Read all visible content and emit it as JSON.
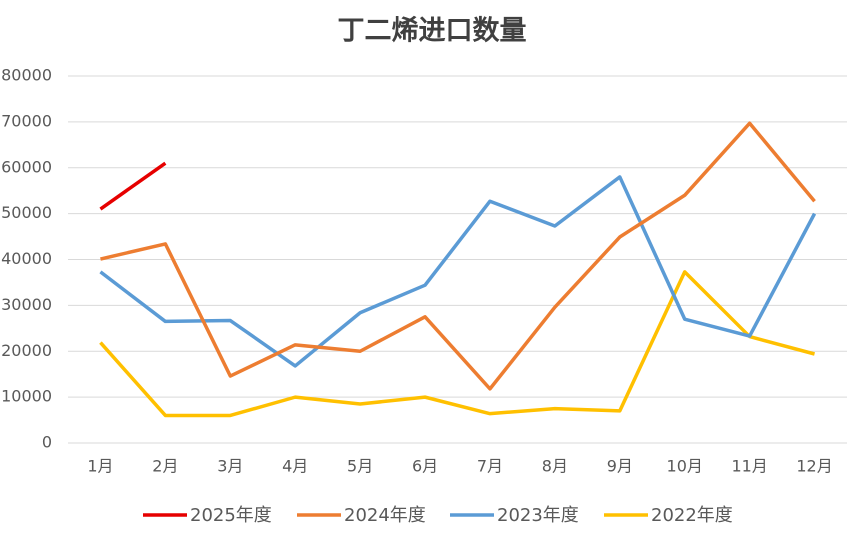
{
  "chart_data": {
    "type": "line",
    "title": "丁二烯进口数量",
    "categories": [
      "1月",
      "2月",
      "3月",
      "4月",
      "5月",
      "6月",
      "7月",
      "8月",
      "9月",
      "10月",
      "11月",
      "12月"
    ],
    "series": [
      {
        "name": "2025年度",
        "color": "#e60000",
        "values": [
          51000,
          61000,
          null,
          null,
          null,
          null,
          null,
          null,
          null,
          null,
          null,
          null
        ]
      },
      {
        "name": "2024年度",
        "color": "#ed7d31",
        "values": [
          40100,
          43400,
          14600,
          21400,
          20000,
          27500,
          11800,
          29600,
          44900,
          54000,
          69700,
          52700
        ]
      },
      {
        "name": "2023年度",
        "color": "#5b9bd5",
        "values": [
          37300,
          26500,
          26700,
          16800,
          28400,
          34400,
          52700,
          47300,
          58000,
          27000,
          23300,
          50000
        ]
      },
      {
        "name": "2022年度",
        "color": "#ffc000",
        "values": [
          21900,
          6000,
          6000,
          10000,
          8500,
          10000,
          6400,
          7500,
          7000,
          37300,
          23200,
          19400
        ]
      }
    ],
    "ylim": [
      0,
      80000
    ],
    "yticks": [
      0,
      10000,
      20000,
      30000,
      40000,
      50000,
      60000,
      70000,
      80000
    ],
    "grid": true,
    "legend": "bottom"
  }
}
